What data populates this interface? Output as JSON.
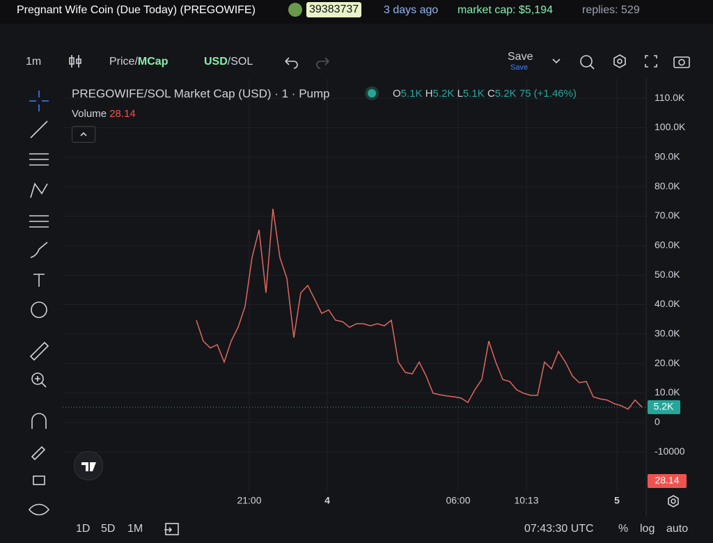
{
  "header": {
    "title": "Pregnant Wife Coin (Due Today) (PREGOWIFE)",
    "badge": "39383737",
    "age": "3 days ago",
    "market_cap": "market cap: $5,194",
    "replies": "replies: 529"
  },
  "toolbar": {
    "interval": "1m",
    "price": "Price/",
    "mcap": "MCap",
    "usd": "USD",
    "sol": "/SOL",
    "save": "Save",
    "save_sub": "Save"
  },
  "legend": {
    "title": "PREGOWIFE/SOL Market Cap (USD) · 1 · Pump",
    "o_label": "O",
    "o": "5.1K",
    "h_label": "H",
    "h": "5.2K",
    "l_label": "L",
    "l": "5.1K",
    "c_label": "C",
    "c": "5.2K",
    "change": "75 (+1.46%)",
    "volume_label": "Volume",
    "volume": "28.14"
  },
  "chart": {
    "type": "line",
    "color": "#e0685f",
    "values": [
      34700,
      27600,
      25300,
      26400,
      20500,
      27600,
      32300,
      39400,
      56000,
      65400,
      44000,
      72500,
      56000,
      48900,
      28800,
      44000,
      46500,
      41800,
      37000,
      38200,
      34700,
      34200,
      32300,
      33500,
      33500,
      32800,
      33500,
      32800,
      34700,
      20500,
      17000,
      16500,
      20500,
      15800,
      9900,
      9400,
      9000,
      8700,
      8300,
      6800,
      11100,
      14600,
      27600,
      20500,
      14600,
      13900,
      11100,
      9900,
      9200,
      9200,
      20500,
      18200,
      24100,
      20500,
      15800,
      13500,
      13900,
      8700,
      8000,
      7600,
      6400,
      5700,
      4500,
      7600,
      5200
    ],
    "ylim": [
      -22000,
      115000
    ],
    "yticks": [
      {
        "value": 110000,
        "label": "110.0K"
      },
      {
        "value": 100000,
        "label": "100.0K"
      },
      {
        "value": 90000,
        "label": "90.0K"
      },
      {
        "value": 80000,
        "label": "80.0K"
      },
      {
        "value": 70000,
        "label": "70.0K"
      },
      {
        "value": 60000,
        "label": "60.0K"
      },
      {
        "value": 50000,
        "label": "50.0K"
      },
      {
        "value": 40000,
        "label": "40.0K"
      },
      {
        "value": 30000,
        "label": "30.0K"
      },
      {
        "value": 20000,
        "label": "20.0K"
      },
      {
        "value": 10000,
        "label": "10.0K"
      },
      0,
      -10000
    ],
    "xticks": [
      "21:00",
      "4",
      "06:00",
      "10:13",
      "5"
    ],
    "last_price": {
      "value": 5200,
      "label": "5.2K"
    },
    "last_volume": "28.14"
  },
  "bottom": {
    "r1": "1D",
    "r2": "5D",
    "r3": "1M",
    "time": "07:43:30 UTC",
    "pct": "%",
    "log": "log",
    "auto": "auto"
  }
}
